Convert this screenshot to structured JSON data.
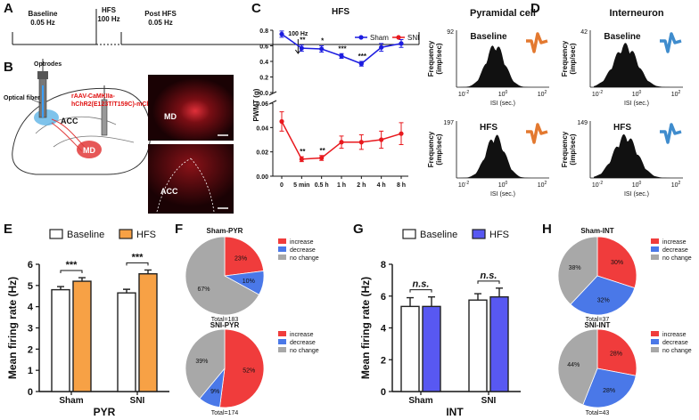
{
  "figure": {
    "panel_letters": [
      "A",
      "B",
      "C",
      "D",
      "E",
      "F",
      "G",
      "H"
    ],
    "timeline": {
      "baseline": "Baseline",
      "baseline_freq": "0.05 Hz",
      "hfs": "HFS",
      "hfs_freq": "100 Hz",
      "post": "Post HFS",
      "post_freq": "0.05 Hz"
    },
    "schematic": {
      "optrodes": "Optrodes",
      "fiber": "Optical fiber",
      "virus": [
        "rAAV-CaMKIIa-",
        "hChR2(E123T/T159C)-mCherry"
      ],
      "acc": "ACC",
      "md": "MD",
      "image_md": "MD",
      "image_acc": "ACC"
    },
    "isi": {
      "columns": [
        "Pyramidal cell",
        "Interneuron"
      ],
      "conditions": [
        "Baseline",
        "HFS"
      ],
      "ylabel": [
        "Frequency",
        "(imp/sec)"
      ],
      "xlabel": "ISI (sec.)",
      "ymax": [
        [
          92,
          197
        ],
        [
          42,
          149
        ]
      ],
      "xtick_labels": [
        [
          "10",
          "-2"
        ],
        [
          "10",
          "0"
        ],
        [
          "10",
          "2"
        ]
      ]
    }
  },
  "chart_data": [
    {
      "type": "line",
      "title": "HFS",
      "ylabel": "PWMT (g)",
      "annotation": "100 Hz",
      "legend": "upper right",
      "categories": [
        "0",
        "5 min",
        "0.5 h",
        "1 h",
        "2 h",
        "4 h",
        "8 h"
      ],
      "series": [
        {
          "name": "Sham",
          "color": "#1c1ce0",
          "axis": "y",
          "values": [
            0.75,
            0.57,
            0.56,
            0.47,
            0.37,
            0.58,
            0.63
          ],
          "errors": [
            0.04,
            0.04,
            0.04,
            0.03,
            0.03,
            0.05,
            0.05
          ],
          "significance": [
            null,
            "**",
            "*",
            "***",
            "***",
            null,
            null
          ]
        },
        {
          "name": "SNI",
          "color": "#e8191e",
          "axis": "y2",
          "values": [
            0.045,
            0.014,
            0.015,
            0.028,
            0.028,
            0.03,
            0.035
          ],
          "errors": [
            0.008,
            0.002,
            0.002,
            0.005,
            0.006,
            0.007,
            0.009
          ],
          "significance": [
            null,
            "**",
            "**",
            null,
            null,
            null,
            null
          ]
        }
      ],
      "ylim": [
        0,
        0.8
      ],
      "yticks": [
        {
          "value": 0,
          "label": "0.0"
        },
        0.2,
        0.4,
        0.6,
        0.8
      ],
      "y2lim": [
        0,
        0.06
      ],
      "y2ticks": [
        {
          "value": 0,
          "label": "0.00"
        },
        0.02,
        0.04,
        0.06
      ]
    },
    {
      "type": "bar",
      "ylabel": "Mean firing rate (Hz)",
      "xlabel": "PYR",
      "legend": "top",
      "categories": [
        "Sham",
        "SNI"
      ],
      "series": [
        {
          "name": "Baseline",
          "color": "#ffffff",
          "values": [
            4.8,
            4.65
          ],
          "errors": [
            0.15,
            0.17
          ]
        },
        {
          "name": "HFS",
          "color": "#f7a145",
          "values": [
            5.2,
            5.55
          ],
          "errors": [
            0.17,
            0.18
          ]
        }
      ],
      "significance": [
        "***",
        "***"
      ],
      "ylim": [
        0,
        6
      ],
      "yticks": [
        0,
        1,
        2,
        3,
        4,
        5,
        6
      ]
    },
    {
      "type": "bar",
      "ylabel": "Mean firing rate (Hz)",
      "xlabel": "INT",
      "legend": "top",
      "categories": [
        "Sham",
        "SNI"
      ],
      "series": [
        {
          "name": "Baseline",
          "color": "#ffffff",
          "values": [
            5.35,
            5.75
          ],
          "errors": [
            0.55,
            0.4
          ]
        },
        {
          "name": "HFS",
          "color": "#5858f2",
          "values": [
            5.35,
            5.95
          ],
          "errors": [
            0.6,
            0.55
          ]
        }
      ],
      "significance": [
        "n.s.",
        "n.s."
      ],
      "ylim": [
        0,
        8
      ],
      "yticks": [
        0,
        2,
        4,
        6,
        8
      ]
    },
    {
      "type": "pie",
      "title": "Sham-PYR",
      "total": "Total=183",
      "categories": [
        "increase",
        "decrease",
        "no change"
      ],
      "colors": [
        "#f03c3c",
        "#4a78e8",
        "#a8a8a8"
      ],
      "values": [
        23,
        10,
        67
      ],
      "value_labels": [
        "23%",
        "10%",
        "67%"
      ]
    },
    {
      "type": "pie",
      "title": "SNI-PYR",
      "total": "Total=174",
      "categories": [
        "increase",
        "decrease",
        "no change"
      ],
      "colors": [
        "#f03c3c",
        "#4a78e8",
        "#a8a8a8"
      ],
      "values": [
        52,
        9,
        39
      ],
      "value_labels": [
        "52%",
        "9%",
        "39%"
      ]
    },
    {
      "type": "pie",
      "title": "Sham-INT",
      "total": "Total=37",
      "categories": [
        "increase",
        "decrease",
        "no change"
      ],
      "colors": [
        "#f03c3c",
        "#4a78e8",
        "#a8a8a8"
      ],
      "values": [
        30,
        32,
        38
      ],
      "value_labels": [
        "30%",
        "32%",
        "38%"
      ]
    },
    {
      "type": "pie",
      "title": "SNI-INT",
      "total": "Total=43",
      "categories": [
        "increase",
        "decrease",
        "no change"
      ],
      "colors": [
        "#f03c3c",
        "#4a78e8",
        "#a8a8a8"
      ],
      "values": [
        28,
        28,
        44
      ],
      "value_labels": [
        "28%",
        "28%",
        "44%"
      ]
    }
  ]
}
